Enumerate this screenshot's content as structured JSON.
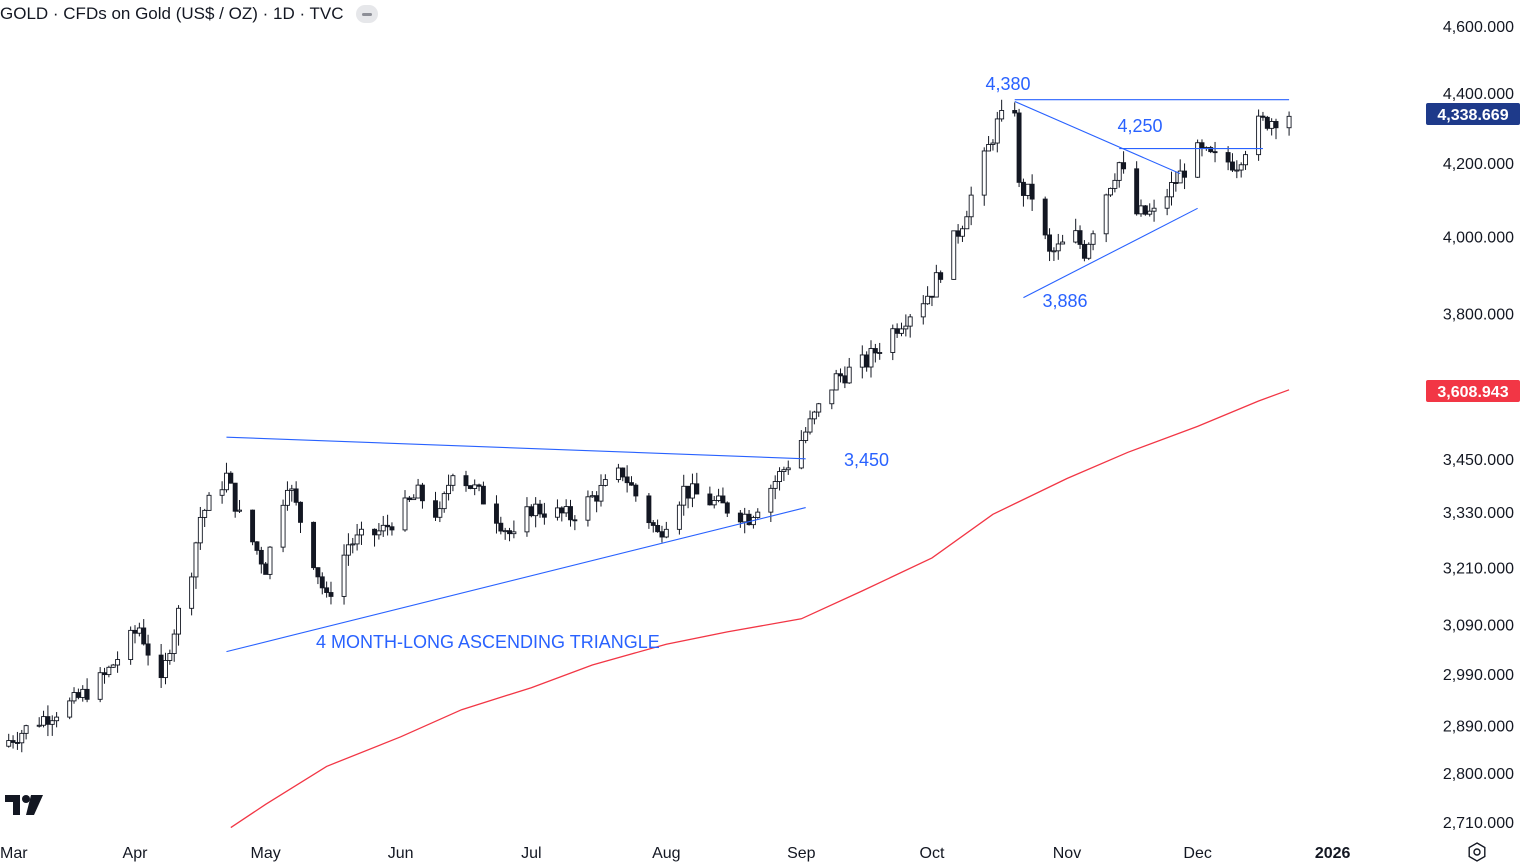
{
  "header": {
    "title": "GOLD · CFDs on Gold (US$ / OZ) · 1D · TVC"
  },
  "icons": {
    "logo": "tradingview-logo-icon",
    "collapse": "minus-icon",
    "settings": "gear-icon"
  },
  "colors": {
    "candle": "#131722",
    "annotation": "#2962ff",
    "moving_average": "#f23645",
    "last_price_label": "#1e3a8a",
    "ma_price_label": "#f23645"
  },
  "chart_data": {
    "type": "candlestick",
    "title": "GOLD · CFDs on Gold (US$ / OZ) · 1D · TVC",
    "x_ticks": [
      "Mar",
      "Apr",
      "May",
      "Jun",
      "Jul",
      "Aug",
      "Sep",
      "Oct",
      "Nov",
      "Dec",
      "2026"
    ],
    "y_ticks": [
      "4,600.000",
      "4,400.000",
      "4,200.000",
      "4,000.000",
      "3,800.000",
      "3,450.000",
      "3,330.000",
      "3,210.000",
      "3,090.000",
      "2,990.000",
      "2,890.000",
      "2,800.000",
      "2,710.000"
    ],
    "y_scale": "log",
    "ylim": [
      2690,
      4620
    ],
    "price_labels": [
      {
        "text": "4,338.669",
        "value": 4338.669,
        "role": "last-price"
      },
      {
        "text": "3,608.943",
        "value": 3608.943,
        "role": "moving-average"
      }
    ],
    "annotations": [
      {
        "text": "4,380",
        "value": 4380
      },
      {
        "text": "4,250",
        "value": 4250
      },
      {
        "text": "3,886",
        "value": 3886
      },
      {
        "text": "3,450",
        "value": 3450
      },
      {
        "text": "4 MONTH-LONG ASCENDING TRIANGLE"
      }
    ],
    "trendlines": [
      {
        "from": [
          "2025-04-22",
          3500
        ],
        "to": [
          "2025-09-02",
          3450
        ],
        "kind": "resistance"
      },
      {
        "from": [
          "2025-04-22",
          3035
        ],
        "to": [
          "2025-09-02",
          3340
        ],
        "kind": "support"
      },
      {
        "from": [
          "2025-10-20",
          4380
        ],
        "to": [
          "2025-12-22",
          4380
        ],
        "kind": "resistance"
      },
      {
        "from": [
          "2025-10-20",
          4375
        ],
        "to": [
          "2025-11-27",
          4170
        ],
        "kind": "resistance"
      },
      {
        "from": [
          "2025-11-13",
          4240
        ],
        "to": [
          "2025-12-16",
          4240
        ],
        "kind": "resistance"
      },
      {
        "from": [
          "2025-10-22",
          3840
        ],
        "to": [
          "2025-12-01",
          4075
        ],
        "kind": "support"
      }
    ],
    "moving_average": {
      "name": "",
      "points": [
        [
          "2025-04-23",
          2700
        ],
        [
          "2025-05-01",
          2742
        ],
        [
          "2025-05-15",
          2812
        ],
        [
          "2025-06-01",
          2868
        ],
        [
          "2025-06-15",
          2920
        ],
        [
          "2025-07-01",
          2963
        ],
        [
          "2025-07-15",
          3008
        ],
        [
          "2025-08-01",
          3050
        ],
        [
          "2025-08-15",
          3075
        ],
        [
          "2025-09-01",
          3102
        ],
        [
          "2025-09-15",
          3160
        ],
        [
          "2025-10-01",
          3230
        ],
        [
          "2025-10-15",
          3325
        ],
        [
          "2025-11-01",
          3405
        ],
        [
          "2025-11-15",
          3465
        ],
        [
          "2025-12-01",
          3525
        ],
        [
          "2025-12-15",
          3585
        ],
        [
          "2025-12-22",
          3612
        ]
      ]
    },
    "series": [
      {
        "name": "",
        "keypoints": [
          [
            "2025-03-01",
            2850
          ],
          [
            "2025-03-10",
            2900
          ],
          [
            "2025-03-18",
            2935
          ],
          [
            "2025-03-25",
            2985
          ],
          [
            "2025-04-02",
            3085
          ],
          [
            "2025-04-07",
            2965
          ],
          [
            "2025-04-09",
            3050
          ],
          [
            "2025-04-14",
            3210
          ],
          [
            "2025-04-16",
            3320
          ],
          [
            "2025-04-22",
            3410
          ],
          [
            "2025-04-25",
            3320
          ],
          [
            "2025-05-01",
            3210
          ],
          [
            "2025-05-06",
            3400
          ],
          [
            "2025-05-15",
            3140
          ],
          [
            "2025-05-20",
            3260
          ],
          [
            "2025-05-28",
            3290
          ],
          [
            "2025-06-05",
            3370
          ],
          [
            "2025-06-10",
            3320
          ],
          [
            "2025-06-13",
            3430
          ],
          [
            "2025-06-20",
            3360
          ],
          [
            "2025-06-27",
            3270
          ],
          [
            "2025-07-01",
            3340
          ],
          [
            "2025-07-10",
            3320
          ],
          [
            "2025-07-22",
            3420
          ],
          [
            "2025-07-30",
            3280
          ],
          [
            "2025-08-05",
            3380
          ],
          [
            "2025-08-12",
            3350
          ],
          [
            "2025-08-20",
            3320
          ],
          [
            "2025-08-29",
            3440
          ],
          [
            "2025-09-03",
            3530
          ],
          [
            "2025-09-09",
            3640
          ],
          [
            "2025-09-16",
            3680
          ],
          [
            "2025-09-23",
            3770
          ],
          [
            "2025-10-01",
            3860
          ],
          [
            "2025-10-08",
            4040
          ],
          [
            "2025-10-16",
            4310
          ],
          [
            "2025-10-20",
            4360
          ],
          [
            "2025-10-21",
            4130
          ],
          [
            "2025-10-24",
            4110
          ],
          [
            "2025-10-28",
            3950
          ],
          [
            "2025-11-03",
            4000
          ],
          [
            "2025-11-05",
            3960
          ],
          [
            "2025-11-10",
            4120
          ],
          [
            "2025-11-13",
            4200
          ],
          [
            "2025-11-17",
            4060
          ],
          [
            "2025-11-21",
            4060
          ],
          [
            "2025-11-26",
            4150
          ],
          [
            "2025-12-01",
            4230
          ],
          [
            "2025-12-05",
            4210
          ],
          [
            "2025-12-10",
            4200
          ],
          [
            "2025-12-15",
            4310
          ],
          [
            "2025-12-22",
            4340
          ]
        ]
      }
    ]
  }
}
